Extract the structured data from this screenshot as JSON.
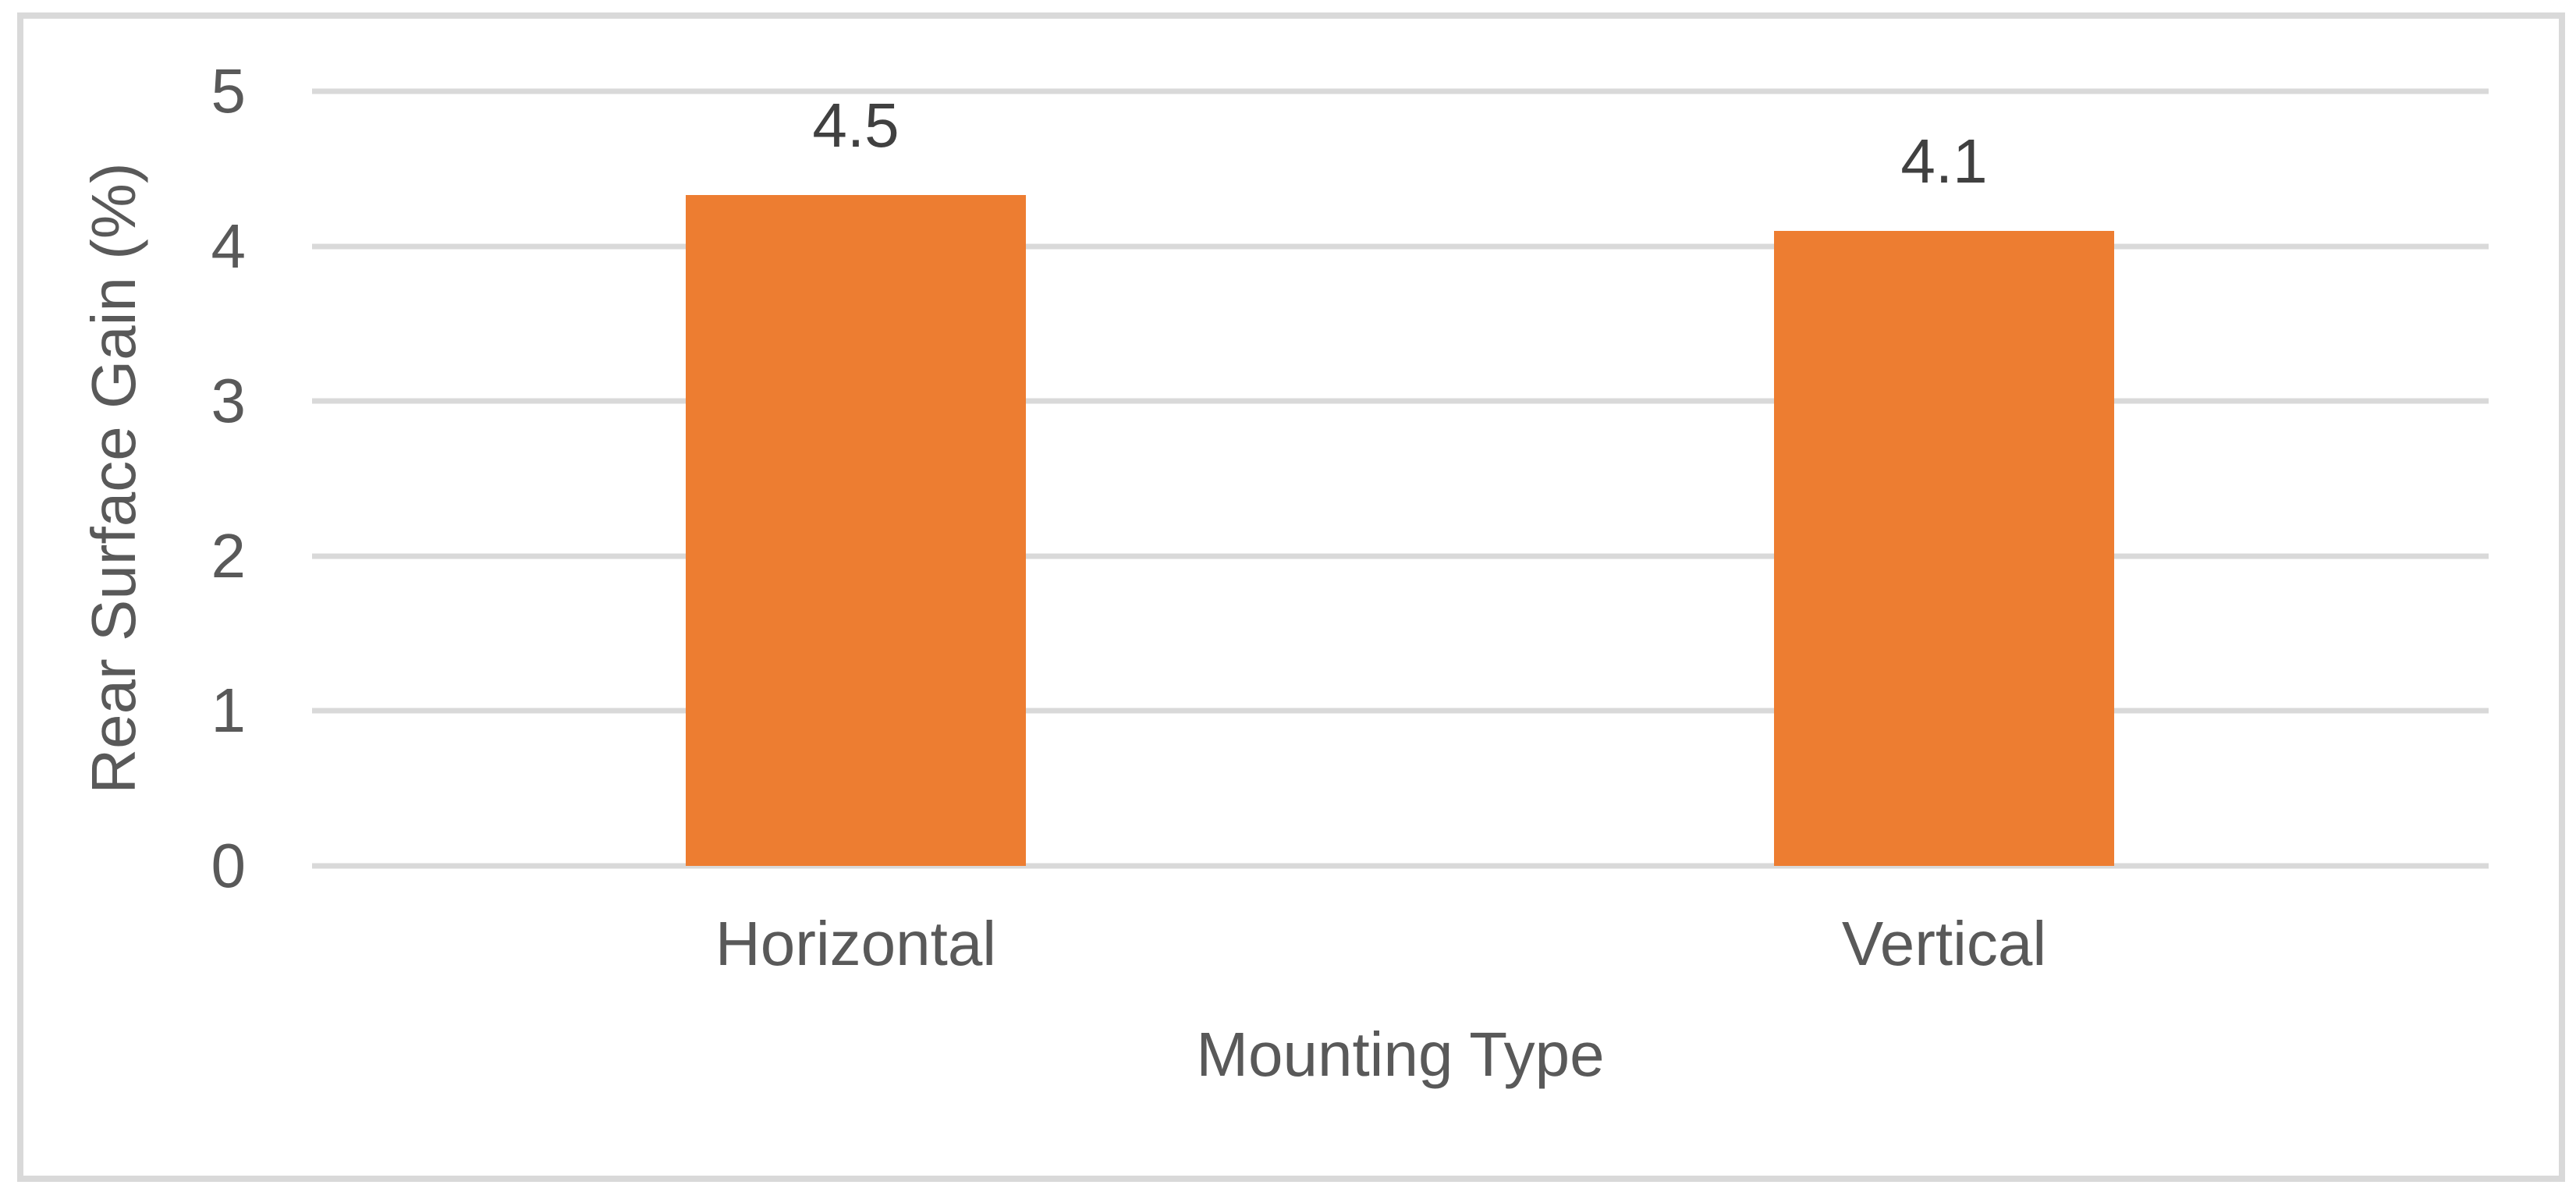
{
  "chart_data": {
    "type": "bar",
    "title": "",
    "categories": [
      "Horizontal",
      "Vertical"
    ],
    "values": [
      4.5,
      4.1
    ],
    "data_labels": [
      "4.5",
      "4.1"
    ],
    "xlabel": "Mounting Type",
    "ylabel": "Rear Surface Gain (%)",
    "ylim": [
      0,
      5
    ],
    "ytick_labels_top_to_bottom": [
      "5",
      "4",
      "3",
      "2",
      "1",
      "0"
    ],
    "grid": true,
    "legend_position": "none",
    "bar_color": "#ED7D31",
    "gridline_color": "#D9D9D9",
    "axis_text_color": "#595959",
    "data_label_color": "#404040",
    "frame_border_color": "#D9D9D9"
  }
}
